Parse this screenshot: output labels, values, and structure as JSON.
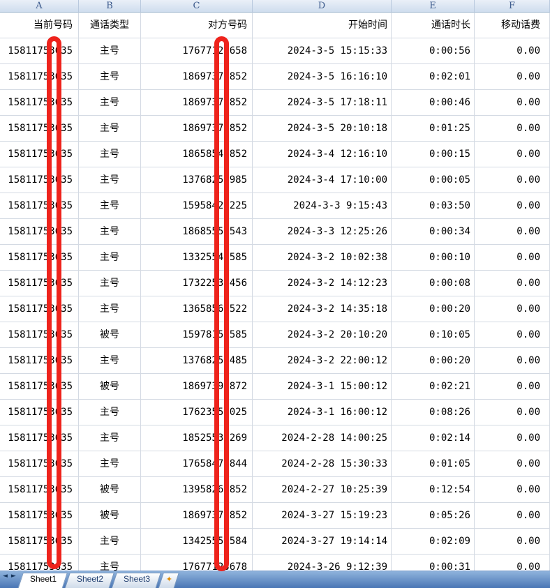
{
  "column_headers": [
    "A",
    "B",
    "C",
    "D",
    "E",
    "F"
  ],
  "table": {
    "header_row": [
      "当前号码",
      "通话类型",
      "对方号码",
      "开始时间",
      "通话时长",
      "移动话费"
    ],
    "rows": [
      [
        "15811753635",
        "主号",
        "17677123658",
        "2024-3-5 15:15:33",
        "0:00:56",
        "0.00"
      ],
      [
        "15811753635",
        "主号",
        "18697378852",
        "2024-3-5 16:16:10",
        "0:02:01",
        "0.00"
      ],
      [
        "15811753635",
        "主号",
        "18697378852",
        "2024-3-5 17:18:11",
        "0:00:46",
        "0.00"
      ],
      [
        "15811753635",
        "主号",
        "18697378852",
        "2024-3-5 20:10:18",
        "0:01:25",
        "0.00"
      ],
      [
        "15811753635",
        "主号",
        "18658548852",
        "2024-3-4 12:16:10",
        "0:00:15",
        "0.00"
      ],
      [
        "15811753635",
        "主号",
        "13768250985",
        "2024-3-4 17:10:00",
        "0:00:05",
        "0.00"
      ],
      [
        "15811753635",
        "主号",
        "15958426225",
        "2024-3-3 9:15:43",
        "0:03:50",
        "0.00"
      ],
      [
        "15811753635",
        "主号",
        "18685552543",
        "2024-3-3 12:25:26",
        "0:00:34",
        "0.00"
      ],
      [
        "15811753635",
        "主号",
        "13325545585",
        "2024-3-2 10:02:38",
        "0:00:10",
        "0.00"
      ],
      [
        "15811753635",
        "主号",
        "17322538456",
        "2024-3-2 14:12:23",
        "0:00:08",
        "0.00"
      ],
      [
        "15811753635",
        "主号",
        "13658568522",
        "2024-3-2 14:35:18",
        "0:00:20",
        "0.00"
      ],
      [
        "15811753635",
        "被号",
        "15978156585",
        "2024-3-2 20:10:20",
        "0:10:05",
        "0.00"
      ],
      [
        "15811753635",
        "主号",
        "13768252485",
        "2024-3-2 22:00:12",
        "0:00:20",
        "0.00"
      ],
      [
        "15811753635",
        "被号",
        "18697398872",
        "2024-3-1 15:00:12",
        "0:02:21",
        "0.00"
      ],
      [
        "15811753635",
        "主号",
        "17623558025",
        "2024-3-1 16:00:12",
        "0:08:26",
        "0.00"
      ],
      [
        "15811753635",
        "主号",
        "18525534269",
        "2024-2-28 14:00:25",
        "0:02:14",
        "0.00"
      ],
      [
        "15811753635",
        "主号",
        "17658474844",
        "2024-2-28 15:30:33",
        "0:01:05",
        "0.00"
      ],
      [
        "15811753635",
        "被号",
        "13958265852",
        "2024-2-27 10:25:39",
        "0:12:54",
        "0.00"
      ],
      [
        "15811753635",
        "被号",
        "18697378852",
        "2024-3-27 15:19:23",
        "0:05:26",
        "0.00"
      ],
      [
        "15811753635",
        "主号",
        "13425557584",
        "2024-3-27 19:14:14",
        "0:02:09",
        "0.00"
      ],
      [
        "15811753635",
        "主号",
        "17677123678",
        "2024-3-26 9:12:39",
        "0:00:31",
        "0.00"
      ]
    ]
  },
  "redactions": [
    {
      "name": "redaction-bar-column-a",
      "column": "A"
    },
    {
      "name": "redaction-bar-column-c",
      "column": "C"
    }
  ],
  "sheet_bar": {
    "nav_prev_glyph": "◄",
    "nav_next_glyph": "►",
    "tabs": [
      "Sheet1",
      "Sheet2",
      "Sheet3"
    ],
    "active_tab": "Sheet1",
    "insert_glyph": "✦"
  },
  "colors": {
    "redaction_red": "#EE231C",
    "gridline": "#D4DAE3",
    "header_border": "#9EB6CE",
    "tab_bar_blue": "#4A76B5"
  }
}
